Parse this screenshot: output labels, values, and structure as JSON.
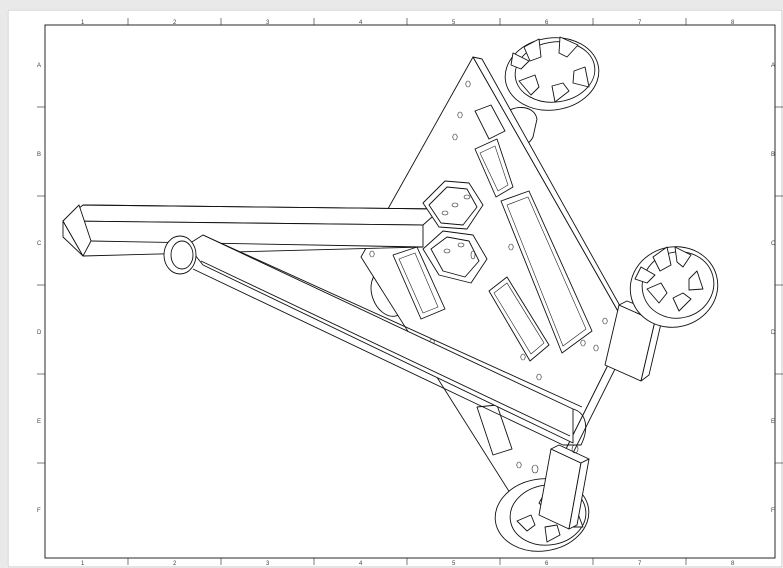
{
  "sheet": {
    "column_labels": [
      "1",
      "2",
      "3",
      "4",
      "5",
      "6",
      "7",
      "8"
    ],
    "row_labels": [
      "A",
      "B",
      "C",
      "D",
      "E",
      "F"
    ]
  },
  "colors": {
    "background": "#e9e9ea",
    "sheet": "#ffffff",
    "line": "#111111"
  }
}
